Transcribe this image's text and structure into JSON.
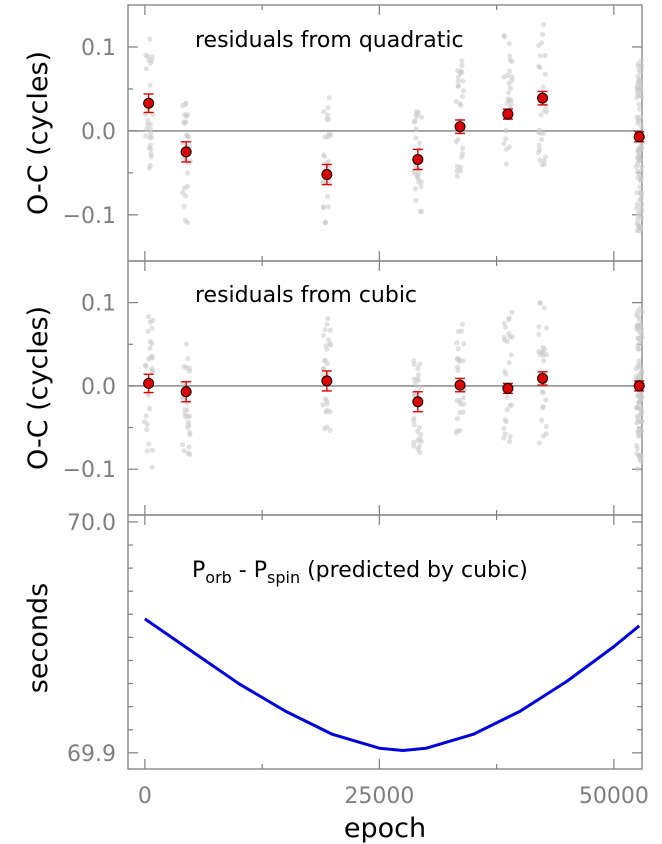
{
  "figure": {
    "xlabel": "epoch",
    "x_ticks": [
      "0",
      "25000",
      "50000"
    ],
    "colors": {
      "points": "#c8c8c8",
      "binned_marker": "#dd0000",
      "errorbar": "#dd0000",
      "curve": "#0000dd",
      "axes": "#7f7f7f"
    }
  },
  "chart_data": [
    {
      "type": "scatter",
      "panel": "top",
      "annotation": "residuals from quadratic",
      "ylabel": "O-C (cycles)",
      "y_ticks": [
        "0.1",
        "0.0",
        "−0.1"
      ],
      "xlim": [
        -1800,
        53000
      ],
      "ylim": [
        -0.155,
        0.15
      ],
      "zero_line": 0,
      "series": [
        {
          "style": "binned points with error bars",
          "x": [
            400,
            4400,
            19400,
            29100,
            33600,
            38700,
            42400,
            52700
          ],
          "y": [
            0.033,
            -0.025,
            -0.052,
            -0.034,
            0.005,
            0.02,
            0.039,
            -0.007
          ],
          "yerr": [
            0.011,
            0.012,
            0.012,
            0.012,
            0.008,
            0.006,
            0.008,
            0.006
          ]
        }
      ],
      "individual_points": {
        "description": "gray scatter of individual timings",
        "groups": [
          {
            "x_center": 400,
            "y_range": [
              -0.06,
              0.11
            ]
          },
          {
            "x_center": 4400,
            "y_range": [
              -0.11,
              0.04
            ]
          },
          {
            "x_center": 19400,
            "y_range": [
              -0.11,
              0.04
            ]
          },
          {
            "x_center": 29100,
            "y_range": [
              -0.1,
              0.025
            ]
          },
          {
            "x_center": 33600,
            "y_range": [
              -0.06,
              0.085
            ]
          },
          {
            "x_center": 38700,
            "y_range": [
              -0.04,
              0.115
            ]
          },
          {
            "x_center": 42400,
            "y_range": [
              -0.05,
              0.13
            ]
          },
          {
            "x_center": 52700,
            "y_range": [
              -0.12,
              0.085
            ]
          }
        ]
      }
    },
    {
      "type": "scatter",
      "panel": "middle",
      "annotation": "residuals from cubic",
      "ylabel": "O-C (cycles)",
      "y_ticks": [
        "0.1",
        "0.0",
        "−0.1"
      ],
      "xlim": [
        -1800,
        53000
      ],
      "ylim": [
        -0.155,
        0.15
      ],
      "zero_line": 0,
      "series": [
        {
          "style": "binned points with error bars",
          "x": [
            400,
            4400,
            19400,
            29100,
            33600,
            38700,
            42400,
            52700
          ],
          "y": [
            0.003,
            -0.007,
            0.006,
            -0.019,
            0.001,
            -0.003,
            0.009,
            0.0
          ],
          "yerr": [
            0.011,
            0.012,
            0.012,
            0.012,
            0.008,
            0.006,
            0.008,
            0.006
          ]
        }
      ],
      "individual_points": {
        "description": "gray scatter of individual timings",
        "groups": [
          {
            "x_center": 400,
            "y_range": [
              -0.1,
              0.085
            ]
          },
          {
            "x_center": 4400,
            "y_range": [
              -0.09,
              0.055
            ]
          },
          {
            "x_center": 19400,
            "y_range": [
              -0.055,
              0.09
            ]
          },
          {
            "x_center": 29100,
            "y_range": [
              -0.08,
              0.04
            ]
          },
          {
            "x_center": 33600,
            "y_range": [
              -0.06,
              0.08
            ]
          },
          {
            "x_center": 38700,
            "y_range": [
              -0.07,
              0.095
            ]
          },
          {
            "x_center": 42400,
            "y_range": [
              -0.075,
              0.105
            ]
          },
          {
            "x_center": 52700,
            "y_range": [
              -0.1,
              0.1
            ]
          }
        ]
      }
    },
    {
      "type": "line",
      "panel": "bottom",
      "annotation": {
        "main": "P",
        "sub1": "orb",
        "sep": " - P",
        "sub2": "spin",
        "rest": " (predicted by cubic)"
      },
      "ylabel": "seconds",
      "y_ticks": [
        "70.0",
        "69.9"
      ],
      "y_tick_values": [
        70.0,
        69.9
      ],
      "xlim": [
        -1800,
        53000
      ],
      "ylim": [
        69.893,
        70.003
      ],
      "series": [
        {
          "x": [
            0,
            5000,
            10000,
            15000,
            20000,
            25000,
            27500,
            30000,
            35000,
            40000,
            45000,
            50000,
            52700
          ],
          "y": [
            69.958,
            69.944,
            69.93,
            69.918,
            69.908,
            69.902,
            69.901,
            69.902,
            69.908,
            69.918,
            69.931,
            69.946,
            69.955
          ]
        }
      ]
    }
  ]
}
